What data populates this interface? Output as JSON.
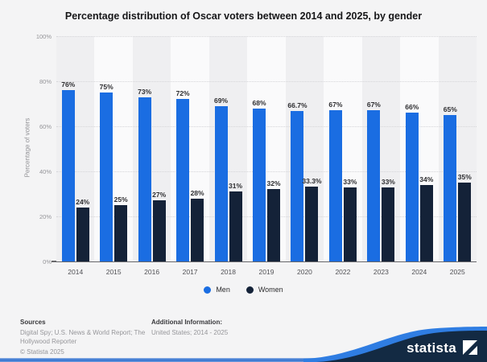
{
  "title": "Percentage distribution of Oscar voters between 2014 and 2025, by gender",
  "chart_data": {
    "type": "bar",
    "title": "Percentage distribution of Oscar voters between 2014 and 2025, by gender",
    "categories": [
      "2014",
      "2015",
      "2016",
      "2017",
      "2018",
      "2019",
      "2020",
      "2022",
      "2023",
      "2024",
      "2025"
    ],
    "series": [
      {
        "name": "Men",
        "color": "#1a6de2",
        "values": [
          76,
          75,
          73,
          72,
          69,
          68,
          66.7,
          67,
          67,
          66,
          65
        ],
        "labels": [
          "76%",
          "75%",
          "73%",
          "72%",
          "69%",
          "68%",
          "66.7%",
          "67%",
          "67%",
          "66%",
          "65%"
        ]
      },
      {
        "name": "Women",
        "color": "#142238",
        "values": [
          24,
          25,
          27,
          28,
          31,
          32,
          33.3,
          33,
          33,
          34,
          35
        ],
        "labels": [
          "24%",
          "25%",
          "27%",
          "28%",
          "31%",
          "32%",
          "33.3%",
          "33%",
          "33%",
          "34%",
          "35%"
        ]
      }
    ],
    "xlabel": "",
    "ylabel": "Percentage of voters",
    "ylim": [
      0,
      100
    ],
    "ytick_labels": [
      "0%",
      "20%",
      "40%",
      "60%",
      "80%",
      "100%"
    ],
    "grid": "horizontal-dotted",
    "plot_bands": "alternating-vertical",
    "legend_position": "bottom"
  },
  "footer": {
    "sources_heading": "Sources",
    "sources_text": "Digital Spy; U.S. News & World Report; The Hollywood Reporter",
    "copyright": "© Statista 2025",
    "additional_heading": "Additional Information:",
    "additional_text": "United States; 2014 - 2025"
  },
  "branding": {
    "logo_text": "statista",
    "badge_navy": "#132a43",
    "swoosh_blue": "#2f7de2"
  }
}
